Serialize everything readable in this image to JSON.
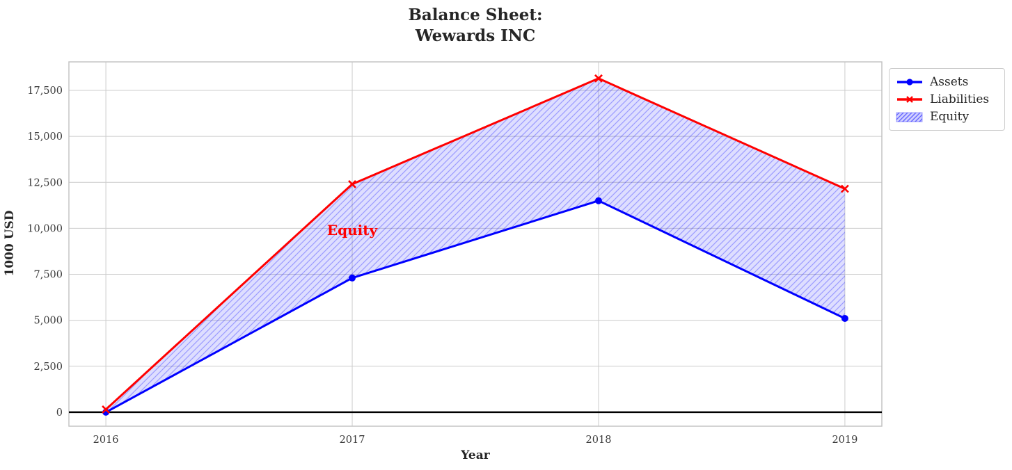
{
  "header": {
    "title_line1": "Balance Sheet:",
    "title_line2": "Wewards INC"
  },
  "axes": {
    "xlabel": "Year",
    "ylabel": "1000 USD"
  },
  "chart_data": {
    "type": "line",
    "title": "Balance Sheet: Wewards INC",
    "xlabel": "Year",
    "ylabel": "1000 USD",
    "x": [
      2016,
      2017,
      2018,
      2019
    ],
    "xtick_labels": [
      "2016",
      "2017",
      "2018",
      "2019"
    ],
    "series": [
      {
        "name": "Assets",
        "color": "#0000ff",
        "marker": "circle",
        "values": [
          0,
          7300,
          11500,
          5100
        ]
      },
      {
        "name": "Liabilities",
        "color": "#ff0000",
        "marker": "x",
        "values": [
          150,
          12400,
          18150,
          12150
        ]
      }
    ],
    "fill_between": {
      "label": "Equity",
      "between": [
        "Assets",
        "Liabilities"
      ],
      "fill_color": "rgba(0,0,255,0.13)",
      "hatch": "diagonal",
      "hatch_color": "rgba(0,0,255,0.30)"
    },
    "annotation": {
      "text": "Equity",
      "x": 2017,
      "y": 9900,
      "color": "#ff0000"
    },
    "yticks": [
      0,
      2500,
      5000,
      7500,
      10000,
      12500,
      15000,
      17500
    ],
    "ytick_labels": [
      "0",
      "2,500",
      "5,000",
      "7,500",
      "10,000",
      "12,500",
      "15,000",
      "17,500"
    ],
    "ylim": [
      -760,
      19050
    ],
    "xlim": [
      2015.85,
      2019.15
    ],
    "grid": true,
    "grid_color": "#cccccc",
    "spine_color": "#c0c0c0",
    "zero_line": {
      "y": 0,
      "color": "#000000"
    },
    "legend_position": "upper-right-outside",
    "background": "#ffffff"
  }
}
